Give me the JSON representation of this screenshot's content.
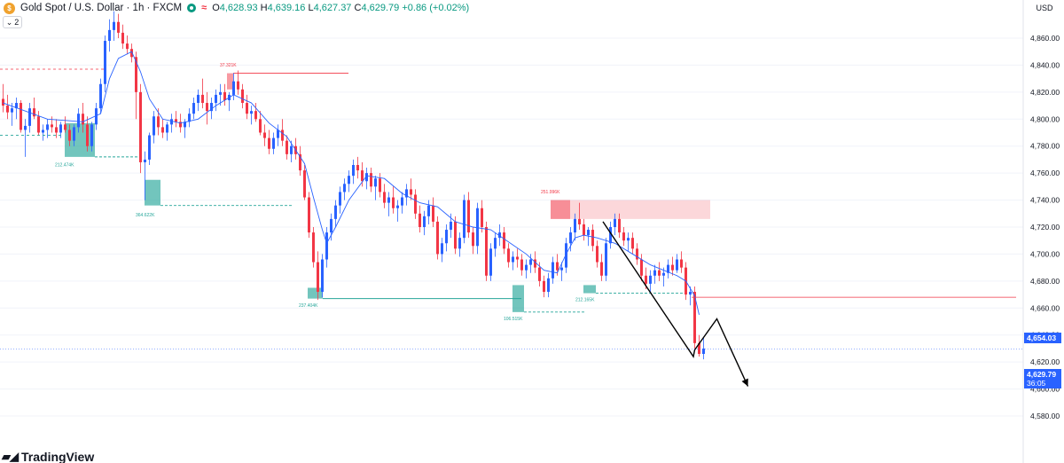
{
  "header": {
    "symbol_icon": "dollar-coin-icon",
    "title": "Gold Spot / U.S. Dollar · 1h · FXCM",
    "open_key": "O",
    "open": "4,628.93",
    "high_key": "H",
    "high": "4,639.16",
    "low_key": "L",
    "low": "4,627.37",
    "close_key": "C",
    "close": "4,629.79",
    "change": "+0.86 (+0.02%)",
    "indicator_count": "2"
  },
  "currency": "USD",
  "price_badges": {
    "ma": {
      "value": "4,654.03",
      "color": "#2962ff"
    },
    "last": {
      "value": "4,629.79",
      "timer": "36:05",
      "color": "#2962ff"
    }
  },
  "branding": {
    "logo_text": "TradingView"
  },
  "colors": {
    "up": "#2962ff",
    "down": "#f23645",
    "ma": "#2962ff",
    "zone_green": "#26a69a",
    "zone_red": "#f23645"
  },
  "chart_data": {
    "type": "candlestick",
    "y_ticks": [
      "4,860.00",
      "4,840.00",
      "4,820.00",
      "4,800.00",
      "4,780.00",
      "4,760.00",
      "4,740.00",
      "4,720.00",
      "4,700.00",
      "4,680.00",
      "4,660.00",
      "4,640.00",
      "4,620.00",
      "4,600.00",
      "4,580.00"
    ],
    "ylim": [
      4576,
      4866
    ],
    "candles": [
      [
        4815,
        4826,
        4805,
        4810
      ],
      [
        4810,
        4818,
        4800,
        4805
      ],
      [
        4805,
        4812,
        4795,
        4808
      ],
      [
        4808,
        4816,
        4800,
        4812
      ],
      [
        4812,
        4814,
        4790,
        4792
      ],
      [
        4792,
        4800,
        4772,
        4795
      ],
      [
        4795,
        4812,
        4790,
        4808
      ],
      [
        4808,
        4816,
        4800,
        4802
      ],
      [
        4802,
        4806,
        4788,
        4790
      ],
      [
        4790,
        4796,
        4784,
        4792
      ],
      [
        4792,
        4800,
        4786,
        4796
      ],
      [
        4796,
        4802,
        4790,
        4794
      ],
      [
        4794,
        4800,
        4786,
        4790
      ],
      [
        4790,
        4798,
        4786,
        4796
      ],
      [
        4796,
        4802,
        4790,
        4792
      ],
      [
        4792,
        4796,
        4780,
        4784
      ],
      [
        4784,
        4796,
        4780,
        4794
      ],
      [
        4794,
        4808,
        4790,
        4804
      ],
      [
        4804,
        4812,
        4790,
        4796
      ],
      [
        4796,
        4802,
        4776,
        4780
      ],
      [
        4780,
        4798,
        4776,
        4796
      ],
      [
        4796,
        4812,
        4792,
        4808
      ],
      [
        4808,
        4830,
        4804,
        4826
      ],
      [
        4826,
        4862,
        4820,
        4858
      ],
      [
        4858,
        4874,
        4850,
        4866
      ],
      [
        4866,
        4880,
        4858,
        4872
      ],
      [
        4872,
        4878,
        4860,
        4864
      ],
      [
        4864,
        4870,
        4852,
        4856
      ],
      [
        4856,
        4862,
        4848,
        4852
      ],
      [
        4852,
        4856,
        4842,
        4846
      ],
      [
        4846,
        4850,
        4800,
        4820
      ],
      [
        4820,
        4826,
        4760,
        4768
      ],
      [
        4768,
        4776,
        4740,
        4770
      ],
      [
        4770,
        4790,
        4766,
        4788
      ],
      [
        4788,
        4806,
        4782,
        4802
      ],
      [
        4802,
        4808,
        4788,
        4794
      ],
      [
        4794,
        4800,
        4786,
        4790
      ],
      [
        4790,
        4798,
        4784,
        4796
      ],
      [
        4796,
        4804,
        4790,
        4800
      ],
      [
        4800,
        4806,
        4794,
        4798
      ],
      [
        4798,
        4804,
        4790,
        4794
      ],
      [
        4794,
        4800,
        4786,
        4798
      ],
      [
        4798,
        4808,
        4794,
        4804
      ],
      [
        4804,
        4816,
        4800,
        4812
      ],
      [
        4812,
        4822,
        4806,
        4818
      ],
      [
        4818,
        4830,
        4808,
        4812
      ],
      [
        4812,
        4820,
        4796,
        4806
      ],
      [
        4806,
        4816,
        4800,
        4812
      ],
      [
        4812,
        4822,
        4806,
        4818
      ],
      [
        4818,
        4826,
        4810,
        4820
      ],
      [
        4820,
        4826,
        4810,
        4814
      ],
      [
        4814,
        4820,
        4806,
        4818
      ],
      [
        4818,
        4834,
        4814,
        4828
      ],
      [
        4828,
        4836,
        4818,
        4822
      ],
      [
        4822,
        4826,
        4808,
        4812
      ],
      [
        4812,
        4818,
        4800,
        4804
      ],
      [
        4804,
        4810,
        4796,
        4806
      ],
      [
        4806,
        4812,
        4798,
        4800
      ],
      [
        4800,
        4806,
        4788,
        4790
      ],
      [
        4790,
        4796,
        4780,
        4786
      ],
      [
        4786,
        4792,
        4774,
        4778
      ],
      [
        4778,
        4790,
        4774,
        4786
      ],
      [
        4786,
        4796,
        4780,
        4792
      ],
      [
        4792,
        4800,
        4780,
        4784
      ],
      [
        4784,
        4788,
        4770,
        4774
      ],
      [
        4774,
        4784,
        4768,
        4780
      ],
      [
        4780,
        4786,
        4770,
        4774
      ],
      [
        4774,
        4780,
        4758,
        4762
      ],
      [
        4762,
        4766,
        4740,
        4742
      ],
      [
        4742,
        4746,
        4712,
        4716
      ],
      [
        4716,
        4720,
        4690,
        4694
      ],
      [
        4694,
        4702,
        4666,
        4672
      ],
      [
        4672,
        4700,
        4668,
        4696
      ],
      [
        4696,
        4720,
        4690,
        4716
      ],
      [
        4716,
        4730,
        4710,
        4726
      ],
      [
        4726,
        4740,
        4720,
        4736
      ],
      [
        4736,
        4750,
        4730,
        4746
      ],
      [
        4746,
        4756,
        4740,
        4752
      ],
      [
        4752,
        4762,
        4746,
        4758
      ],
      [
        4758,
        4770,
        4752,
        4766
      ],
      [
        4766,
        4772,
        4756,
        4762
      ],
      [
        4762,
        4768,
        4750,
        4754
      ],
      [
        4754,
        4764,
        4748,
        4760
      ],
      [
        4760,
        4764,
        4746,
        4750
      ],
      [
        4750,
        4758,
        4740,
        4756
      ],
      [
        4756,
        4760,
        4742,
        4746
      ],
      [
        4746,
        4752,
        4734,
        4738
      ],
      [
        4738,
        4746,
        4728,
        4742
      ],
      [
        4742,
        4750,
        4730,
        4734
      ],
      [
        4734,
        4740,
        4724,
        4736
      ],
      [
        4736,
        4746,
        4730,
        4742
      ],
      [
        4742,
        4752,
        4736,
        4748
      ],
      [
        4748,
        4756,
        4740,
        4744
      ],
      [
        4744,
        4748,
        4726,
        4730
      ],
      [
        4730,
        4736,
        4716,
        4720
      ],
      [
        4720,
        4732,
        4714,
        4728
      ],
      [
        4728,
        4740,
        4722,
        4736
      ],
      [
        4736,
        4742,
        4720,
        4724
      ],
      [
        4724,
        4728,
        4696,
        4700
      ],
      [
        4700,
        4712,
        4694,
        4708
      ],
      [
        4708,
        4722,
        4702,
        4718
      ],
      [
        4718,
        4730,
        4712,
        4724
      ],
      [
        4724,
        4728,
        4700,
        4704
      ],
      [
        4704,
        4716,
        4698,
        4712
      ],
      [
        4712,
        4744,
        4708,
        4740
      ],
      [
        4740,
        4746,
        4712,
        4716
      ],
      [
        4716,
        4720,
        4700,
        4706
      ],
      [
        4706,
        4738,
        4700,
        4734
      ],
      [
        4734,
        4740,
        4716,
        4720
      ],
      [
        4720,
        4724,
        4680,
        4684
      ],
      [
        4684,
        4708,
        4680,
        4704
      ],
      [
        4704,
        4716,
        4698,
        4712
      ],
      [
        4712,
        4722,
        4706,
        4716
      ],
      [
        4716,
        4720,
        4700,
        4704
      ],
      [
        4704,
        4708,
        4690,
        4694
      ],
      [
        4694,
        4702,
        4688,
        4698
      ],
      [
        4698,
        4704,
        4690,
        4696
      ],
      [
        4696,
        4700,
        4684,
        4688
      ],
      [
        4688,
        4696,
        4682,
        4692
      ],
      [
        4692,
        4700,
        4686,
        4696
      ],
      [
        4696,
        4702,
        4686,
        4690
      ],
      [
        4690,
        4694,
        4676,
        4680
      ],
      [
        4680,
        4684,
        4668,
        4672
      ],
      [
        4672,
        4686,
        4668,
        4682
      ],
      [
        4682,
        4698,
        4678,
        4694
      ],
      [
        4694,
        4700,
        4684,
        4688
      ],
      [
        4688,
        4694,
        4680,
        4690
      ],
      [
        4690,
        4712,
        4686,
        4708
      ],
      [
        4708,
        4720,
        4702,
        4716
      ],
      [
        4716,
        4730,
        4710,
        4726
      ],
      [
        4726,
        4738,
        4718,
        4722
      ],
      [
        4722,
        4726,
        4710,
        4714
      ],
      [
        4714,
        4720,
        4706,
        4718
      ],
      [
        4718,
        4722,
        4702,
        4706
      ],
      [
        4706,
        4710,
        4690,
        4694
      ],
      [
        4694,
        4700,
        4680,
        4684
      ],
      [
        4684,
        4712,
        4680,
        4708
      ],
      [
        4708,
        4724,
        4704,
        4720
      ],
      [
        4720,
        4730,
        4714,
        4726
      ],
      [
        4726,
        4730,
        4712,
        4716
      ],
      [
        4716,
        4720,
        4706,
        4710
      ],
      [
        4710,
        4716,
        4702,
        4712
      ],
      [
        4712,
        4716,
        4700,
        4704
      ],
      [
        4704,
        4708,
        4692,
        4696
      ],
      [
        4696,
        4700,
        4680,
        4684
      ],
      [
        4684,
        4690,
        4674,
        4678
      ],
      [
        4678,
        4688,
        4672,
        4684
      ],
      [
        4684,
        4692,
        4678,
        4688
      ],
      [
        4688,
        4694,
        4680,
        4684
      ],
      [
        4684,
        4690,
        4676,
        4686
      ],
      [
        4686,
        4696,
        4682,
        4692
      ],
      [
        4692,
        4698,
        4684,
        4688
      ],
      [
        4688,
        4700,
        4686,
        4696
      ],
      [
        4696,
        4702,
        4686,
        4690
      ],
      [
        4690,
        4694,
        4666,
        4670
      ],
      [
        4670,
        4676,
        4662,
        4672
      ],
      [
        4672,
        4676,
        4630,
        4634
      ],
      [
        4634,
        4640,
        4624,
        4626
      ],
      [
        4626,
        4638,
        4622,
        4630
      ]
    ],
    "moving_average": [
      [
        0,
        4812
      ],
      [
        10,
        4800
      ],
      [
        18,
        4798
      ],
      [
        22,
        4804
      ],
      [
        24,
        4830
      ],
      [
        26,
        4845
      ],
      [
        29,
        4850
      ],
      [
        31,
        4835
      ],
      [
        33,
        4815
      ],
      [
        36,
        4800
      ],
      [
        40,
        4797
      ],
      [
        44,
        4800
      ],
      [
        48,
        4810
      ],
      [
        52,
        4818
      ],
      [
        56,
        4812
      ],
      [
        60,
        4797
      ],
      [
        64,
        4787
      ],
      [
        68,
        4767
      ],
      [
        70,
        4742
      ],
      [
        72,
        4718
      ],
      [
        73,
        4708
      ],
      [
        75,
        4720
      ],
      [
        78,
        4740
      ],
      [
        82,
        4758
      ],
      [
        86,
        4756
      ],
      [
        90,
        4745
      ],
      [
        94,
        4738
      ],
      [
        98,
        4735
      ],
      [
        102,
        4724
      ],
      [
        106,
        4720
      ],
      [
        110,
        4718
      ],
      [
        114,
        4709
      ],
      [
        118,
        4700
      ],
      [
        122,
        4688
      ],
      [
        125,
        4686
      ],
      [
        127,
        4700
      ],
      [
        129,
        4712
      ],
      [
        131,
        4714
      ],
      [
        134,
        4712
      ],
      [
        138,
        4708
      ],
      [
        142,
        4700
      ],
      [
        146,
        4692
      ],
      [
        149,
        4688
      ],
      [
        152,
        4684
      ],
      [
        154,
        4680
      ],
      [
        156,
        4669
      ],
      [
        157,
        4655
      ]
    ]
  },
  "annotations": {
    "green_zones": [
      {
        "id": "zone-1",
        "label": "212.474K"
      },
      {
        "id": "zone-2",
        "label": "364.622K"
      },
      {
        "id": "zone-3",
        "label": "237.404K"
      },
      {
        "id": "zone-4",
        "label": "106.515K"
      },
      {
        "id": "zone-5",
        "label": "212.165K"
      }
    ],
    "red_zones": [
      {
        "id": "zone-6",
        "label": "37.321K"
      },
      {
        "id": "zone-7",
        "label": "251.996K"
      }
    ],
    "projection": {
      "points": [
        [
          156,
          4667
        ],
        [
          156,
          4629
        ],
        [
          161,
          4652
        ],
        [
          168,
          4602
        ]
      ]
    }
  }
}
